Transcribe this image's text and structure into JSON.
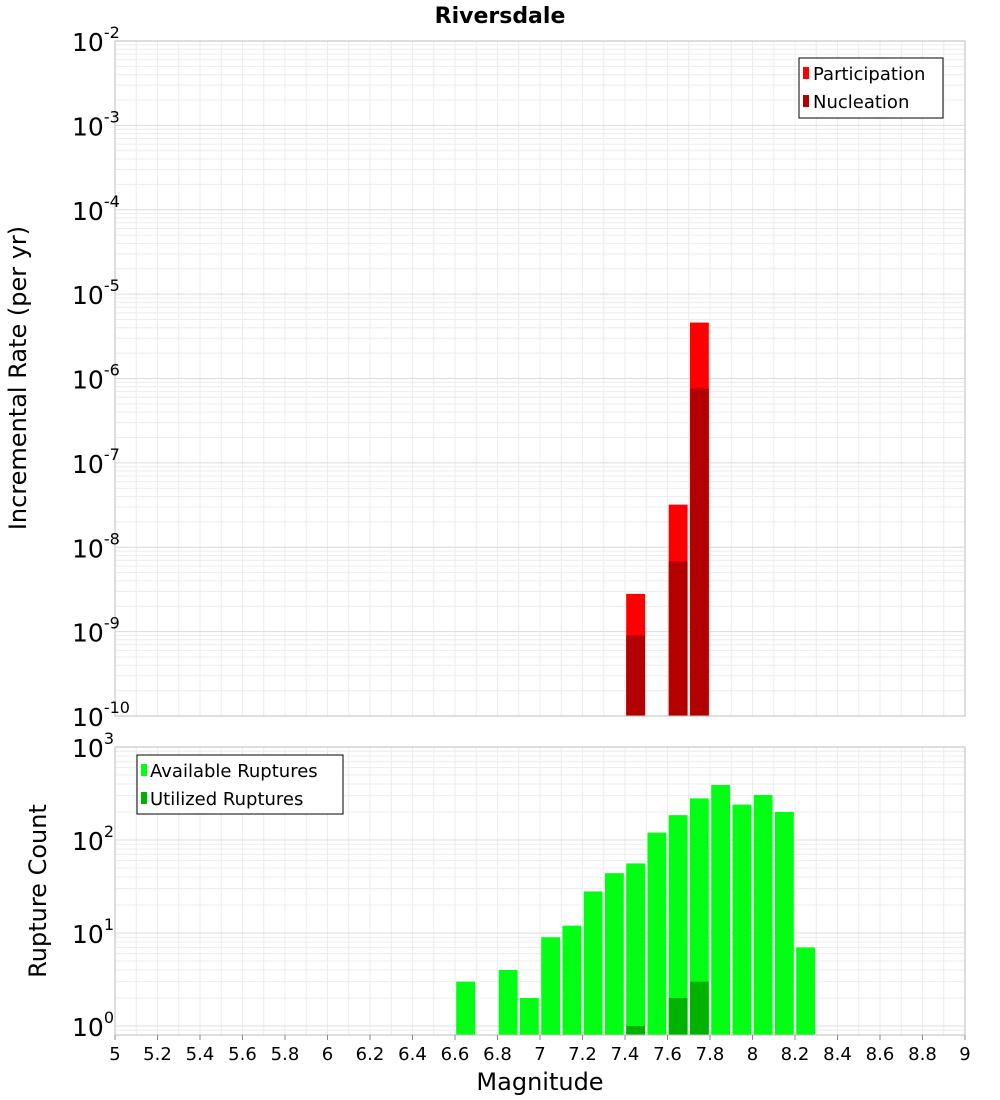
{
  "chart_data": [
    {
      "type": "bar",
      "title": "Riversdale",
      "ylabel": "Incremental Rate (per yr)",
      "xlabel": "",
      "y_scale": "log",
      "ylim": [
        1e-10,
        0.01
      ],
      "xlim": [
        5,
        9
      ],
      "grid": true,
      "legend_position": "top-right",
      "bin_width": 0.1,
      "y_ticks": [
        {
          "base": "10",
          "exp": "-10"
        },
        {
          "base": "10",
          "exp": "-9"
        },
        {
          "base": "10",
          "exp": "-8"
        },
        {
          "base": "10",
          "exp": "-7"
        },
        {
          "base": "10",
          "exp": "-6"
        },
        {
          "base": "10",
          "exp": "-5"
        },
        {
          "base": "10",
          "exp": "-4"
        },
        {
          "base": "10",
          "exp": "-3"
        },
        {
          "base": "10",
          "exp": "-2"
        }
      ],
      "series": [
        {
          "name": "Participation",
          "color": "#ff0000",
          "x": [
            7.45,
            7.65,
            7.75
          ],
          "values": [
            2.8e-09,
            3.2e-08,
            4.6e-06
          ]
        },
        {
          "name": "Nucleation",
          "color": "#b30000",
          "x": [
            7.45,
            7.65,
            7.75
          ],
          "values": [
            9e-10,
            6.8e-09,
            7.6e-07
          ]
        }
      ]
    },
    {
      "type": "bar",
      "title": "",
      "ylabel": "Rupture Count",
      "xlabel": "Magnitude",
      "y_scale": "log",
      "ylim": [
        0.8,
        1000
      ],
      "xlim": [
        5,
        9
      ],
      "grid": true,
      "legend_position": "top-left",
      "bin_width": 0.1,
      "y_ticks": [
        {
          "base": "10",
          "exp": "0"
        },
        {
          "base": "10",
          "exp": "1"
        },
        {
          "base": "10",
          "exp": "2"
        },
        {
          "base": "10",
          "exp": "3"
        }
      ],
      "x_ticks": [
        "5",
        "5.2",
        "5.4",
        "5.6",
        "5.8",
        "6",
        "6.2",
        "6.4",
        "6.6",
        "6.8",
        "7",
        "7.2",
        "7.4",
        "7.6",
        "7.8",
        "8",
        "8.2",
        "8.4",
        "8.6",
        "8.8",
        "9"
      ],
      "series": [
        {
          "name": "Available Ruptures",
          "color": "#00ff12",
          "x": [
            6.65,
            6.85,
            6.95,
            7.05,
            7.15,
            7.25,
            7.35,
            7.45,
            7.55,
            7.65,
            7.75,
            7.85,
            7.95,
            8.05,
            8.15,
            8.25
          ],
          "values": [
            3,
            4,
            2,
            9,
            12,
            28,
            44,
            56,
            120,
            185,
            280,
            390,
            240,
            305,
            200,
            7
          ]
        },
        {
          "name": "Utilized Ruptures",
          "color": "#00b300",
          "x": [
            7.45,
            7.65,
            7.75
          ],
          "values": [
            1,
            2,
            3
          ]
        }
      ]
    }
  ]
}
